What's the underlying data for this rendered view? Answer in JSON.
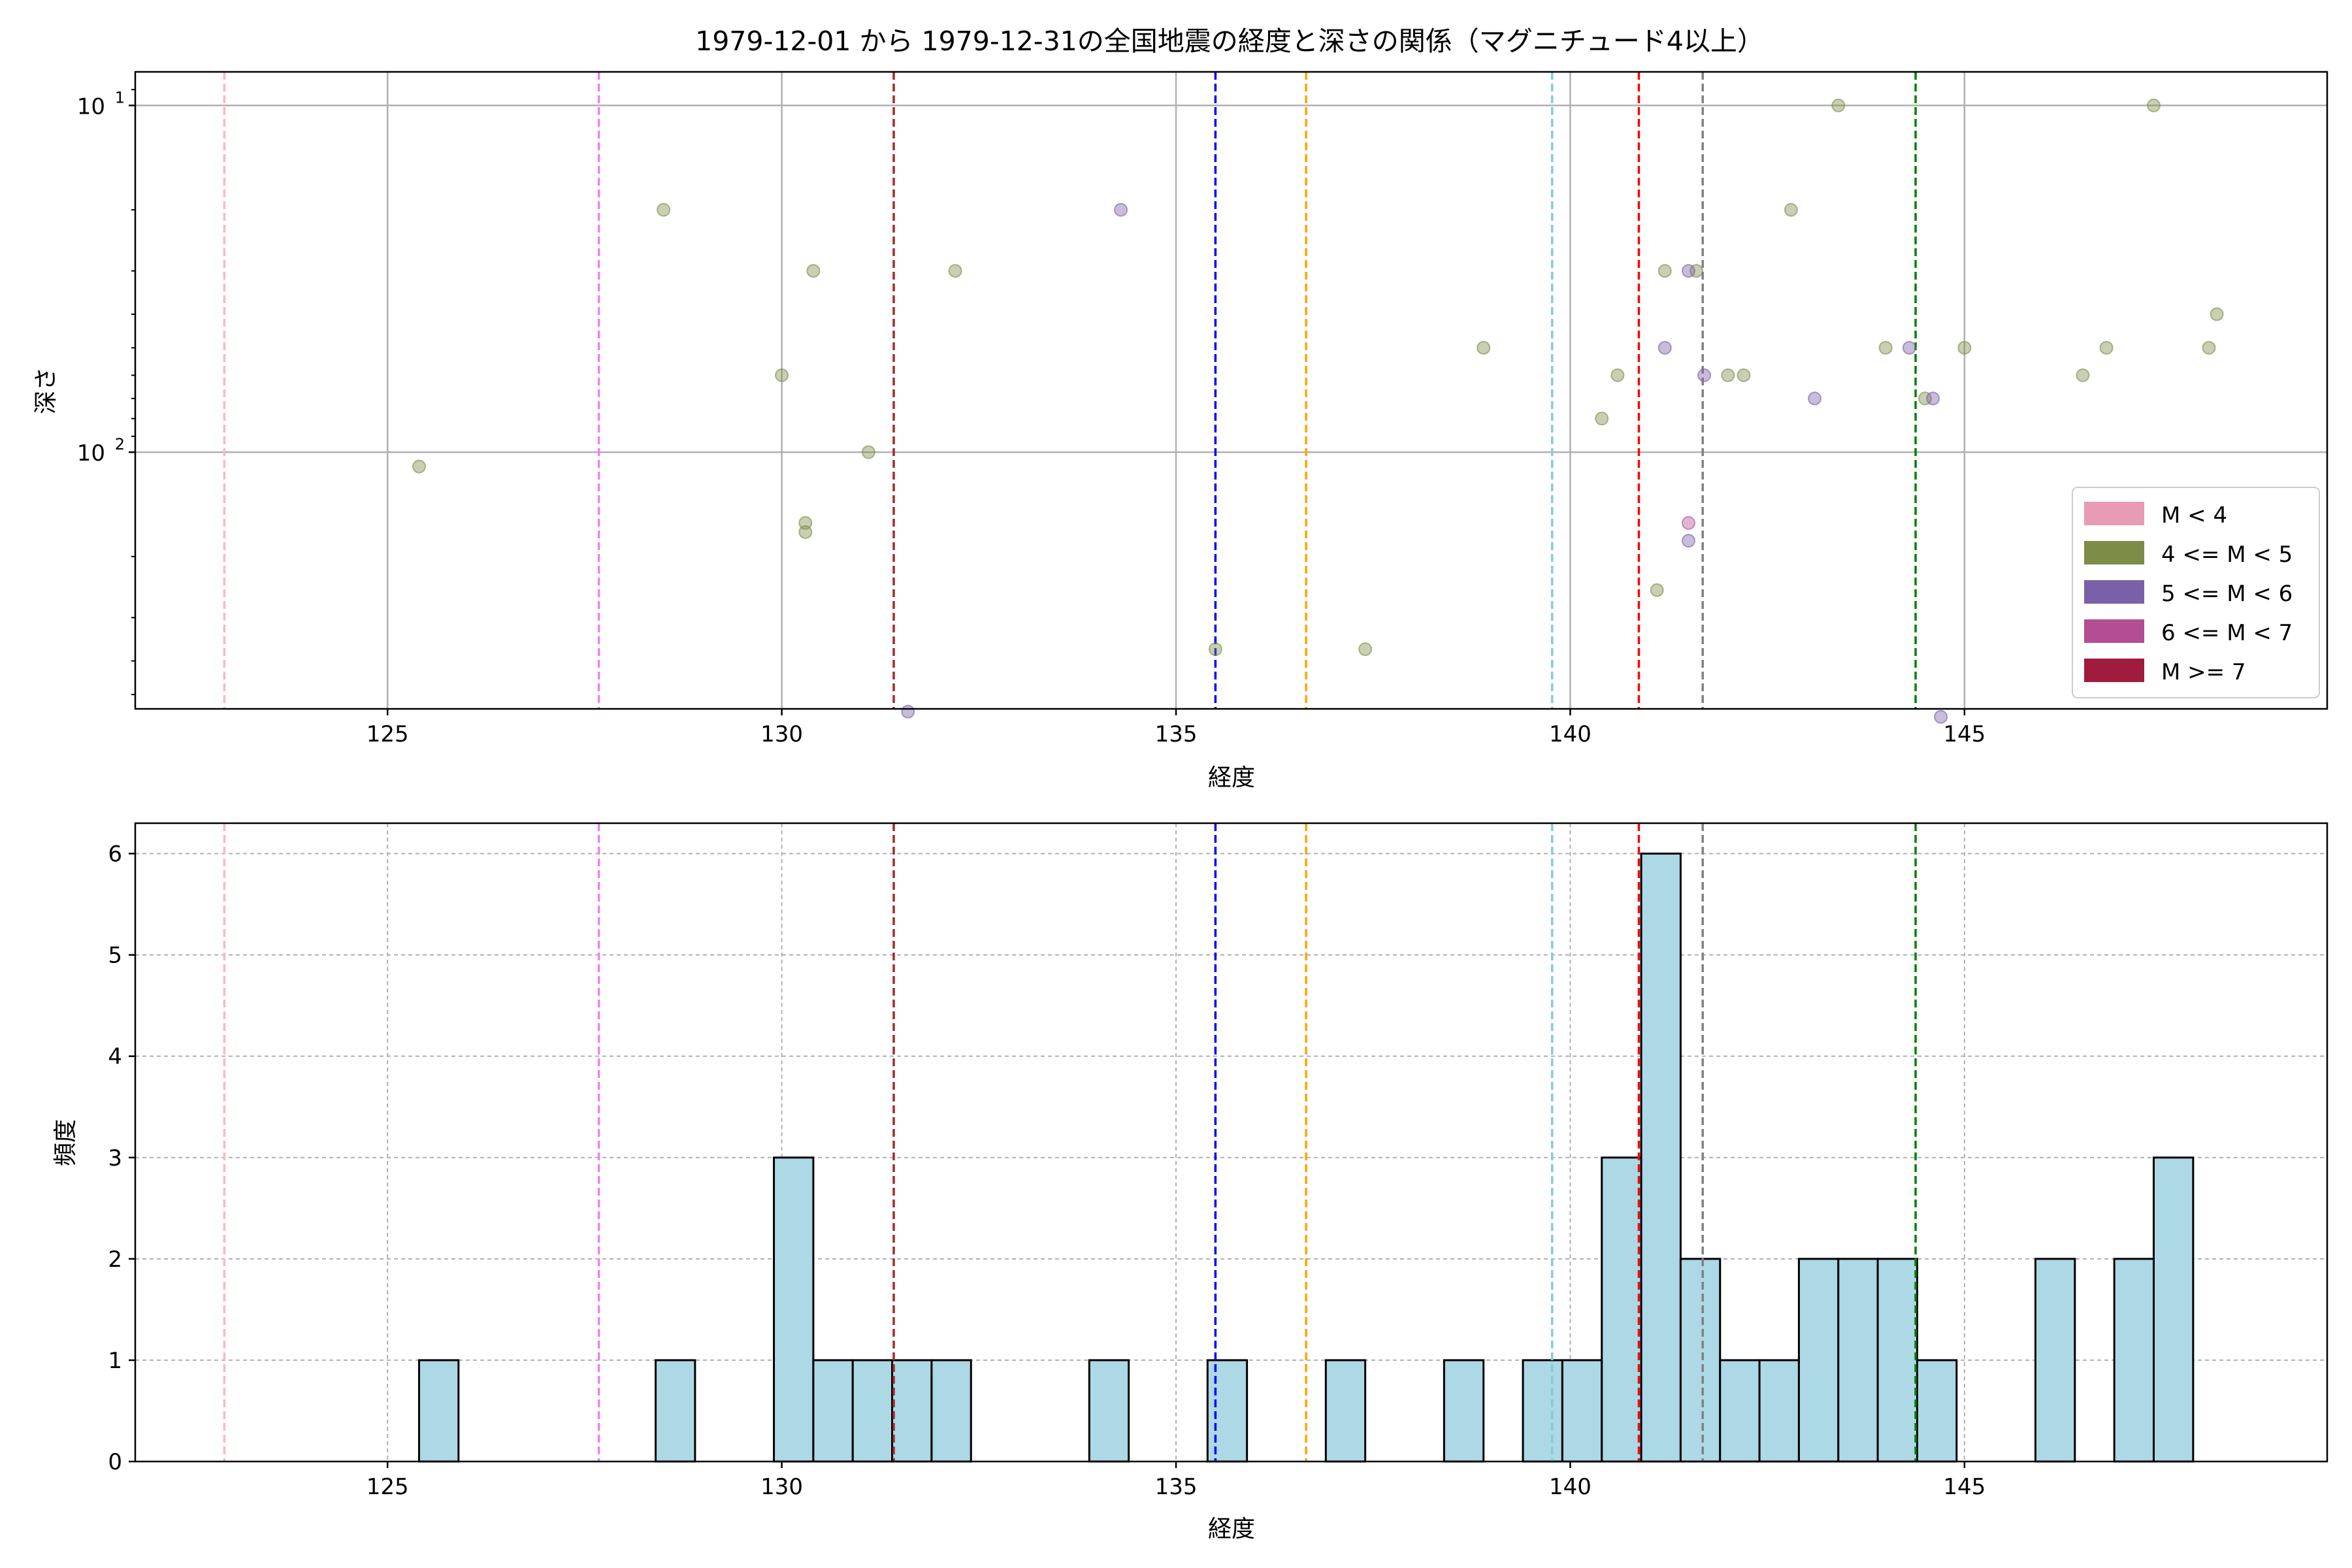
{
  "title": "1979-12-01 から 1979-12-31の全国地震の経度と深さの関係（マグニチュード4以上）",
  "colors": {
    "scatter_m4_5": "#7d8c47",
    "scatter_m5_6": "#7a60a8",
    "scatter_m6_7": "#b44d93",
    "hist_fill": "#add8e6",
    "hist_edge": "#000000",
    "grid": "#b0b0b0"
  },
  "reference_lines": [
    {
      "x": 122.93,
      "color": "#ffb6c1"
    },
    {
      "x": 127.68,
      "color": "#ee82ee"
    },
    {
      "x": 131.42,
      "color": "#a52a2a"
    },
    {
      "x": 135.5,
      "color": "#0000ff"
    },
    {
      "x": 136.65,
      "color": "#ffa500"
    },
    {
      "x": 139.77,
      "color": "#7fcfd4"
    },
    {
      "x": 140.87,
      "color": "#ff0000"
    },
    {
      "x": 141.68,
      "color": "#808080"
    },
    {
      "x": 144.38,
      "color": "#008000"
    }
  ],
  "chart_data": [
    {
      "type": "scatter",
      "xlabel": "経度",
      "ylabel": "深さ",
      "xlim": [
        121.8,
        149.6
      ],
      "ylim": [
        550,
        8
      ],
      "yscale": "log",
      "y_inverted": true,
      "grid": true,
      "x_ticks": [
        "125",
        "130",
        "135",
        "140",
        "145"
      ],
      "x_tick_values": [
        125,
        130,
        135,
        140,
        145
      ],
      "y_tick_labels": [
        {
          "value": 10,
          "base": "10",
          "exp": "1"
        },
        {
          "value": 100,
          "base": "10",
          "exp": "2"
        }
      ],
      "legend": {
        "position": "lower right",
        "entries": [
          {
            "label": "M < 4",
            "color": "#e89bb4"
          },
          {
            "label": "4 <= M < 5",
            "color": "#7d8c47"
          },
          {
            "label": "5 <= M < 6",
            "color": "#7a60a8"
          },
          {
            "label": "6 <= M < 7",
            "color": "#b44d93"
          },
          {
            "label": "M >= 7",
            "color": "#a01c3e"
          }
        ]
      },
      "series": [
        {
          "name": "4 <= M < 5",
          "points": [
            [
              125.4,
              110
            ],
            [
              128.5,
              20
            ],
            [
              130.0,
              60
            ],
            [
              130.3,
              160
            ],
            [
              130.3,
              170
            ],
            [
              130.4,
              30
            ],
            [
              131.1,
              100
            ],
            [
              132.2,
              30
            ],
            [
              135.5,
              370
            ],
            [
              137.4,
              370
            ],
            [
              138.9,
              50
            ],
            [
              140.4,
              80
            ],
            [
              140.6,
              60
            ],
            [
              141.1,
              250
            ],
            [
              141.2,
              30
            ],
            [
              141.6,
              30
            ],
            [
              142.0,
              60
            ],
            [
              142.2,
              60
            ],
            [
              142.8,
              20
            ],
            [
              143.4,
              10
            ],
            [
              144.0,
              50
            ],
            [
              144.5,
              70
            ],
            [
              145.0,
              50
            ],
            [
              146.5,
              60
            ],
            [
              146.8,
              50
            ],
            [
              147.4,
              10
            ],
            [
              148.1,
              50
            ],
            [
              148.2,
              40
            ]
          ]
        },
        {
          "name": "5 <= M < 6",
          "points": [
            [
              131.6,
              560
            ],
            [
              134.3,
              20
            ],
            [
              141.2,
              50
            ],
            [
              141.5,
              180
            ],
            [
              141.5,
              30
            ],
            [
              141.7,
              60
            ],
            [
              143.1,
              70
            ],
            [
              144.3,
              50
            ],
            [
              144.6,
              70
            ],
            [
              144.7,
              580
            ]
          ]
        },
        {
          "name": "6 <= M < 7",
          "points": [
            [
              141.5,
              160
            ]
          ]
        }
      ]
    },
    {
      "type": "bar",
      "xlabel": "経度",
      "ylabel": "頻度",
      "xlim": [
        121.8,
        149.6
      ],
      "ylim": [
        0,
        6.3
      ],
      "grid": true,
      "x_ticks": [
        "125",
        "130",
        "135",
        "140",
        "145"
      ],
      "x_tick_values": [
        125,
        130,
        135,
        140,
        145
      ],
      "y_ticks": [
        "0",
        "1",
        "2",
        "3",
        "4",
        "5",
        "6"
      ],
      "y_tick_values": [
        0,
        1,
        2,
        3,
        4,
        5,
        6
      ],
      "bin_start": 125.4,
      "bin_width": 0.5,
      "counts": [
        1,
        0,
        0,
        0,
        0,
        0,
        1,
        0,
        0,
        3,
        1,
        1,
        1,
        1,
        0,
        0,
        0,
        1,
        0,
        0,
        1,
        0,
        0,
        1,
        0,
        0,
        1,
        0,
        1,
        1,
        3,
        6,
        2,
        1,
        1,
        2,
        2,
        2,
        1,
        0,
        0,
        2,
        0,
        2,
        3
      ]
    }
  ]
}
